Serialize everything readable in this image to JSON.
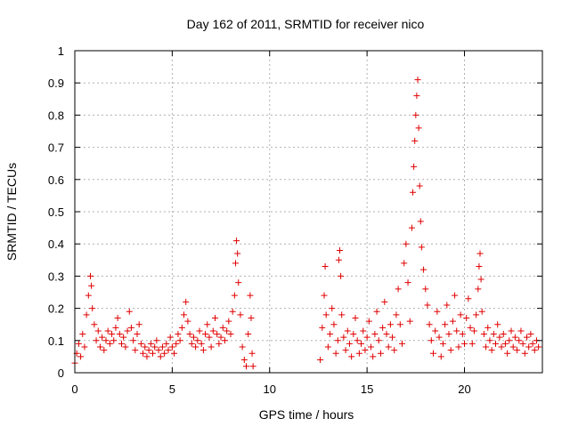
{
  "chart_data": {
    "type": "scatter",
    "title": "Day 162 of 2011, SRMTID for receiver nico",
    "xlabel": "GPS time / hours",
    "ylabel": "SRMTID / TECUs",
    "xlim": [
      0,
      24
    ],
    "ylim": [
      0,
      1
    ],
    "xticks": [
      0,
      5,
      10,
      15,
      20
    ],
    "xtick_labels": [
      "0",
      "5",
      "10",
      "15",
      "20"
    ],
    "yticks": [
      0,
      0.1,
      0.2,
      0.3,
      0.4,
      0.5,
      0.6,
      0.7,
      0.8,
      0.9,
      1
    ],
    "ytick_labels": [
      "0",
      "0.1",
      "0.2",
      "0.3",
      "0.4",
      "0.5",
      "0.6",
      "0.7",
      "0.8",
      "0.9",
      "1"
    ],
    "grid": true,
    "marker": "plus",
    "color": "#e00000",
    "series": [
      {
        "name": "SRMTID",
        "points": [
          [
            0.0,
            0.03
          ],
          [
            0.1,
            0.06
          ],
          [
            0.2,
            0.09
          ],
          [
            0.3,
            0.05
          ],
          [
            0.4,
            0.12
          ],
          [
            0.5,
            0.08
          ],
          [
            0.6,
            0.18
          ],
          [
            0.7,
            0.24
          ],
          [
            0.8,
            0.3
          ],
          [
            0.85,
            0.27
          ],
          [
            0.9,
            0.2
          ],
          [
            1.0,
            0.15
          ],
          [
            1.1,
            0.1
          ],
          [
            1.2,
            0.13
          ],
          [
            1.3,
            0.08
          ],
          [
            1.4,
            0.11
          ],
          [
            1.5,
            0.07
          ],
          [
            1.6,
            0.1
          ],
          [
            1.7,
            0.13
          ],
          [
            1.8,
            0.09
          ],
          [
            1.9,
            0.12
          ],
          [
            2.0,
            0.1
          ],
          [
            2.1,
            0.14
          ],
          [
            2.2,
            0.17
          ],
          [
            2.3,
            0.12
          ],
          [
            2.4,
            0.09
          ],
          [
            2.5,
            0.11
          ],
          [
            2.6,
            0.08
          ],
          [
            2.7,
            0.13
          ],
          [
            2.8,
            0.19
          ],
          [
            2.9,
            0.14
          ],
          [
            3.0,
            0.1
          ],
          [
            3.1,
            0.07
          ],
          [
            3.2,
            0.12
          ],
          [
            3.3,
            0.15
          ],
          [
            3.4,
            0.09
          ],
          [
            3.5,
            0.06
          ],
          [
            3.6,
            0.08
          ],
          [
            3.7,
            0.05
          ],
          [
            3.8,
            0.07
          ],
          [
            3.9,
            0.09
          ],
          [
            4.0,
            0.06
          ],
          [
            4.1,
            0.08
          ],
          [
            4.2,
            0.1
          ],
          [
            4.3,
            0.07
          ],
          [
            4.4,
            0.05
          ],
          [
            4.5,
            0.08
          ],
          [
            4.6,
            0.06
          ],
          [
            4.7,
            0.09
          ],
          [
            4.8,
            0.07
          ],
          [
            4.9,
            0.11
          ],
          [
            5.0,
            0.08
          ],
          [
            5.1,
            0.06
          ],
          [
            5.2,
            0.09
          ],
          [
            5.3,
            0.12
          ],
          [
            5.4,
            0.1
          ],
          [
            5.5,
            0.14
          ],
          [
            5.6,
            0.18
          ],
          [
            5.7,
            0.22
          ],
          [
            5.8,
            0.16
          ],
          [
            5.9,
            0.12
          ],
          [
            6.0,
            0.09
          ],
          [
            6.1,
            0.11
          ],
          [
            6.2,
            0.08
          ],
          [
            6.3,
            0.1
          ],
          [
            6.4,
            0.13
          ],
          [
            6.5,
            0.09
          ],
          [
            6.6,
            0.07
          ],
          [
            6.7,
            0.12
          ],
          [
            6.8,
            0.15
          ],
          [
            6.9,
            0.11
          ],
          [
            7.0,
            0.08
          ],
          [
            7.1,
            0.13
          ],
          [
            7.2,
            0.17
          ],
          [
            7.3,
            0.12
          ],
          [
            7.4,
            0.09
          ],
          [
            7.5,
            0.11
          ],
          [
            7.6,
            0.14
          ],
          [
            7.7,
            0.1
          ],
          [
            7.8,
            0.13
          ],
          [
            7.9,
            0.16
          ],
          [
            8.0,
            0.12
          ],
          [
            8.1,
            0.19
          ],
          [
            8.2,
            0.24
          ],
          [
            8.25,
            0.34
          ],
          [
            8.3,
            0.41
          ],
          [
            8.35,
            0.37
          ],
          [
            8.4,
            0.28
          ],
          [
            8.5,
            0.18
          ],
          [
            8.6,
            0.08
          ],
          [
            8.7,
            0.04
          ],
          [
            8.8,
            0.02
          ],
          [
            8.9,
            0.12
          ],
          [
            9.0,
            0.24
          ],
          [
            9.05,
            0.17
          ],
          [
            9.1,
            0.06
          ],
          [
            9.15,
            0.02
          ],
          [
            12.6,
            0.04
          ],
          [
            12.7,
            0.14
          ],
          [
            12.8,
            0.24
          ],
          [
            12.85,
            0.33
          ],
          [
            12.9,
            0.18
          ],
          [
            13.0,
            0.08
          ],
          [
            13.1,
            0.12
          ],
          [
            13.2,
            0.2
          ],
          [
            13.3,
            0.15
          ],
          [
            13.4,
            0.06
          ],
          [
            13.5,
            0.1
          ],
          [
            13.55,
            0.35
          ],
          [
            13.6,
            0.38
          ],
          [
            13.65,
            0.3
          ],
          [
            13.7,
            0.18
          ],
          [
            13.8,
            0.11
          ],
          [
            13.9,
            0.07
          ],
          [
            14.0,
            0.13
          ],
          [
            14.1,
            0.09
          ],
          [
            14.2,
            0.05
          ],
          [
            14.3,
            0.12
          ],
          [
            14.4,
            0.17
          ],
          [
            14.5,
            0.1
          ],
          [
            14.6,
            0.06
          ],
          [
            14.7,
            0.09
          ],
          [
            14.8,
            0.13
          ],
          [
            14.9,
            0.07
          ],
          [
            15.0,
            0.11
          ],
          [
            15.1,
            0.16
          ],
          [
            15.2,
            0.08
          ],
          [
            15.3,
            0.05
          ],
          [
            15.4,
            0.12
          ],
          [
            15.5,
            0.19
          ],
          [
            15.6,
            0.1
          ],
          [
            15.7,
            0.06
          ],
          [
            15.8,
            0.14
          ],
          [
            15.9,
            0.22
          ],
          [
            16.0,
            0.12
          ],
          [
            16.1,
            0.08
          ],
          [
            16.2,
            0.15
          ],
          [
            16.3,
            0.11
          ],
          [
            16.4,
            0.07
          ],
          [
            16.5,
            0.18
          ],
          [
            16.6,
            0.26
          ],
          [
            16.7,
            0.15
          ],
          [
            16.8,
            0.09
          ],
          [
            16.9,
            0.34
          ],
          [
            17.0,
            0.4
          ],
          [
            17.1,
            0.28
          ],
          [
            17.2,
            0.16
          ],
          [
            17.3,
            0.45
          ],
          [
            17.35,
            0.56
          ],
          [
            17.4,
            0.64
          ],
          [
            17.45,
            0.72
          ],
          [
            17.5,
            0.8
          ],
          [
            17.55,
            0.86
          ],
          [
            17.6,
            0.91
          ],
          [
            17.65,
            0.76
          ],
          [
            17.7,
            0.58
          ],
          [
            17.75,
            0.47
          ],
          [
            17.8,
            0.39
          ],
          [
            17.9,
            0.32
          ],
          [
            18.0,
            0.26
          ],
          [
            18.1,
            0.21
          ],
          [
            18.2,
            0.15
          ],
          [
            18.3,
            0.1
          ],
          [
            18.4,
            0.06
          ],
          [
            18.5,
            0.13
          ],
          [
            18.6,
            0.19
          ],
          [
            18.7,
            0.11
          ],
          [
            18.8,
            0.05
          ],
          [
            18.9,
            0.09
          ],
          [
            19.0,
            0.15
          ],
          [
            19.1,
            0.21
          ],
          [
            19.2,
            0.12
          ],
          [
            19.3,
            0.07
          ],
          [
            19.4,
            0.16
          ],
          [
            19.5,
            0.24
          ],
          [
            19.6,
            0.13
          ],
          [
            19.7,
            0.08
          ],
          [
            19.8,
            0.18
          ],
          [
            19.9,
            0.12
          ],
          [
            20.0,
            0.09
          ],
          [
            20.1,
            0.17
          ],
          [
            20.2,
            0.23
          ],
          [
            20.3,
            0.14
          ],
          [
            20.4,
            0.09
          ],
          [
            20.5,
            0.13
          ],
          [
            20.6,
            0.18
          ],
          [
            20.7,
            0.26
          ],
          [
            20.75,
            0.33
          ],
          [
            20.8,
            0.37
          ],
          [
            20.85,
            0.29
          ],
          [
            20.9,
            0.19
          ],
          [
            21.0,
            0.12
          ],
          [
            21.1,
            0.08
          ],
          [
            21.2,
            0.14
          ],
          [
            21.3,
            0.1
          ],
          [
            21.4,
            0.07
          ],
          [
            21.5,
            0.12
          ],
          [
            21.6,
            0.09
          ],
          [
            21.7,
            0.15
          ],
          [
            21.8,
            0.11
          ],
          [
            21.9,
            0.08
          ],
          [
            22.0,
            0.12
          ],
          [
            22.1,
            0.09
          ],
          [
            22.2,
            0.06
          ],
          [
            22.3,
            0.1
          ],
          [
            22.4,
            0.13
          ],
          [
            22.5,
            0.08
          ],
          [
            22.6,
            0.11
          ],
          [
            22.7,
            0.07
          ],
          [
            22.8,
            0.1
          ],
          [
            22.9,
            0.13
          ],
          [
            23.0,
            0.09
          ],
          [
            23.1,
            0.06
          ],
          [
            23.2,
            0.11
          ],
          [
            23.3,
            0.08
          ],
          [
            23.4,
            0.12
          ],
          [
            23.5,
            0.09
          ],
          [
            23.6,
            0.07
          ],
          [
            23.7,
            0.1
          ],
          [
            23.8,
            0.08
          ]
        ]
      }
    ]
  }
}
